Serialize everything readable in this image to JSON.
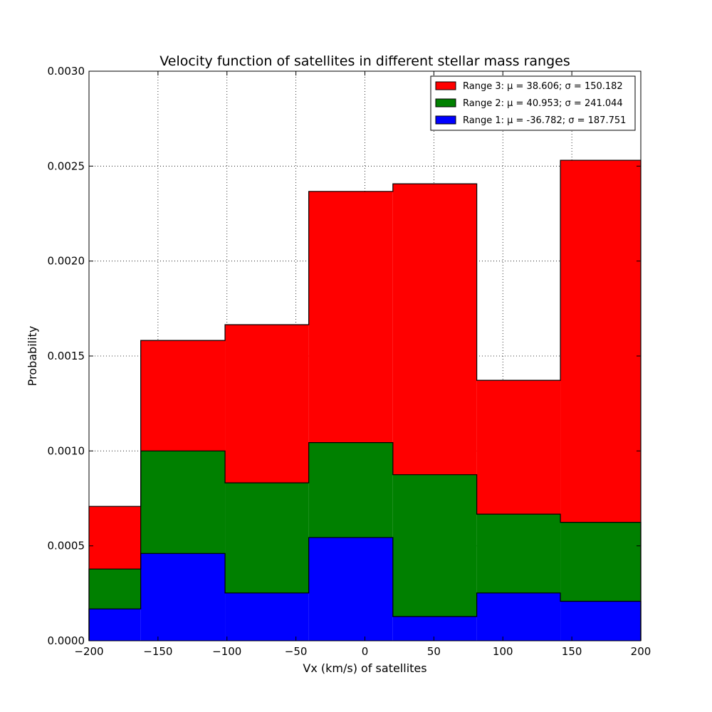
{
  "chart_data": {
    "type": "bar",
    "stacked": true,
    "histogram": true,
    "title": "Velocity function of satellites in different stellar mass ranges",
    "xlabel": "Vx (km/s) of satellites",
    "ylabel": "Probability",
    "xlim": [
      -200,
      200
    ],
    "ylim": [
      0,
      0.003
    ],
    "xticks": [
      -200,
      -150,
      -100,
      -50,
      0,
      50,
      100,
      150,
      200
    ],
    "xtick_labels": [
      "−200",
      "−150",
      "−100",
      "−50",
      "0",
      "50",
      "100",
      "150",
      "200"
    ],
    "yticks": [
      0,
      0.0005,
      0.001,
      0.0015,
      0.002,
      0.0025,
      0.003
    ],
    "ytick_labels": [
      "0.0000",
      "0.0005",
      "0.0010",
      "0.0015",
      "0.0020",
      "0.0025",
      "0.0030"
    ],
    "grid": true,
    "legend_position": "top-right",
    "bin_edges": [
      -200,
      -162.5,
      -101.4,
      -40.7,
      20.3,
      81.1,
      141.7,
      200
    ],
    "series": [
      {
        "name": "Range 1",
        "legend_label": "Range 1: μ = -36.782; σ = 187.751",
        "color": "#0000ff",
        "values": [
          0.000168,
          0.00046,
          0.000252,
          0.000544,
          0.000128,
          0.000252,
          0.000208
        ]
      },
      {
        "name": "Range 2",
        "legend_label": "Range 2: μ = 40.953; σ = 241.044",
        "color": "#008000",
        "values": [
          0.00021,
          0.00054,
          0.00058,
          0.0005,
          0.000747,
          0.000415,
          0.000416
        ]
      },
      {
        "name": "Range 3",
        "legend_label": "Range 3: μ = 38.606; σ = 150.182",
        "color": "#ff0000",
        "values": [
          0.00033,
          0.000582,
          0.000833,
          0.001323,
          0.001532,
          0.000705,
          0.001907
        ]
      }
    ]
  }
}
